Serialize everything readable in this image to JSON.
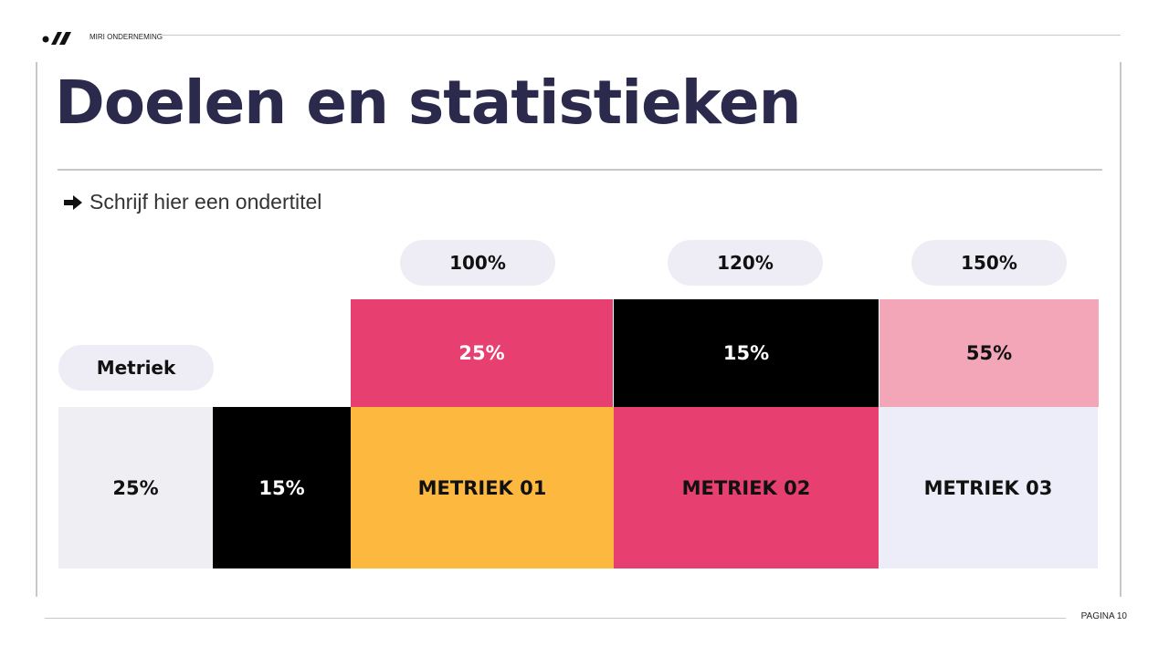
{
  "header": {
    "brand": "MIRI ONDERNEMING",
    "logo_icon": "miri-logo"
  },
  "title": "Doelen en statistieken",
  "subtitle": {
    "icon": "arrow-right-icon",
    "text": "Schrijf hier een ondertitel"
  },
  "columns": [
    "100%",
    "120%",
    "150%"
  ],
  "row_label": "Metriek",
  "top_row": [
    "25%",
    "15%",
    "55%"
  ],
  "bottom_row": [
    "25%",
    "15%",
    "METRIEK 01",
    "METRIEK 02",
    "METRIEK 03"
  ],
  "colors": {
    "pink": "#e73f70",
    "black": "#000000",
    "light_pink": "#f2a6b8",
    "yellow": "#fdb840",
    "light_gray": "#efeef3",
    "lavender": "#ecedf8",
    "title": "#2b2a4c"
  },
  "footer": {
    "page": "PAGINA 10"
  }
}
